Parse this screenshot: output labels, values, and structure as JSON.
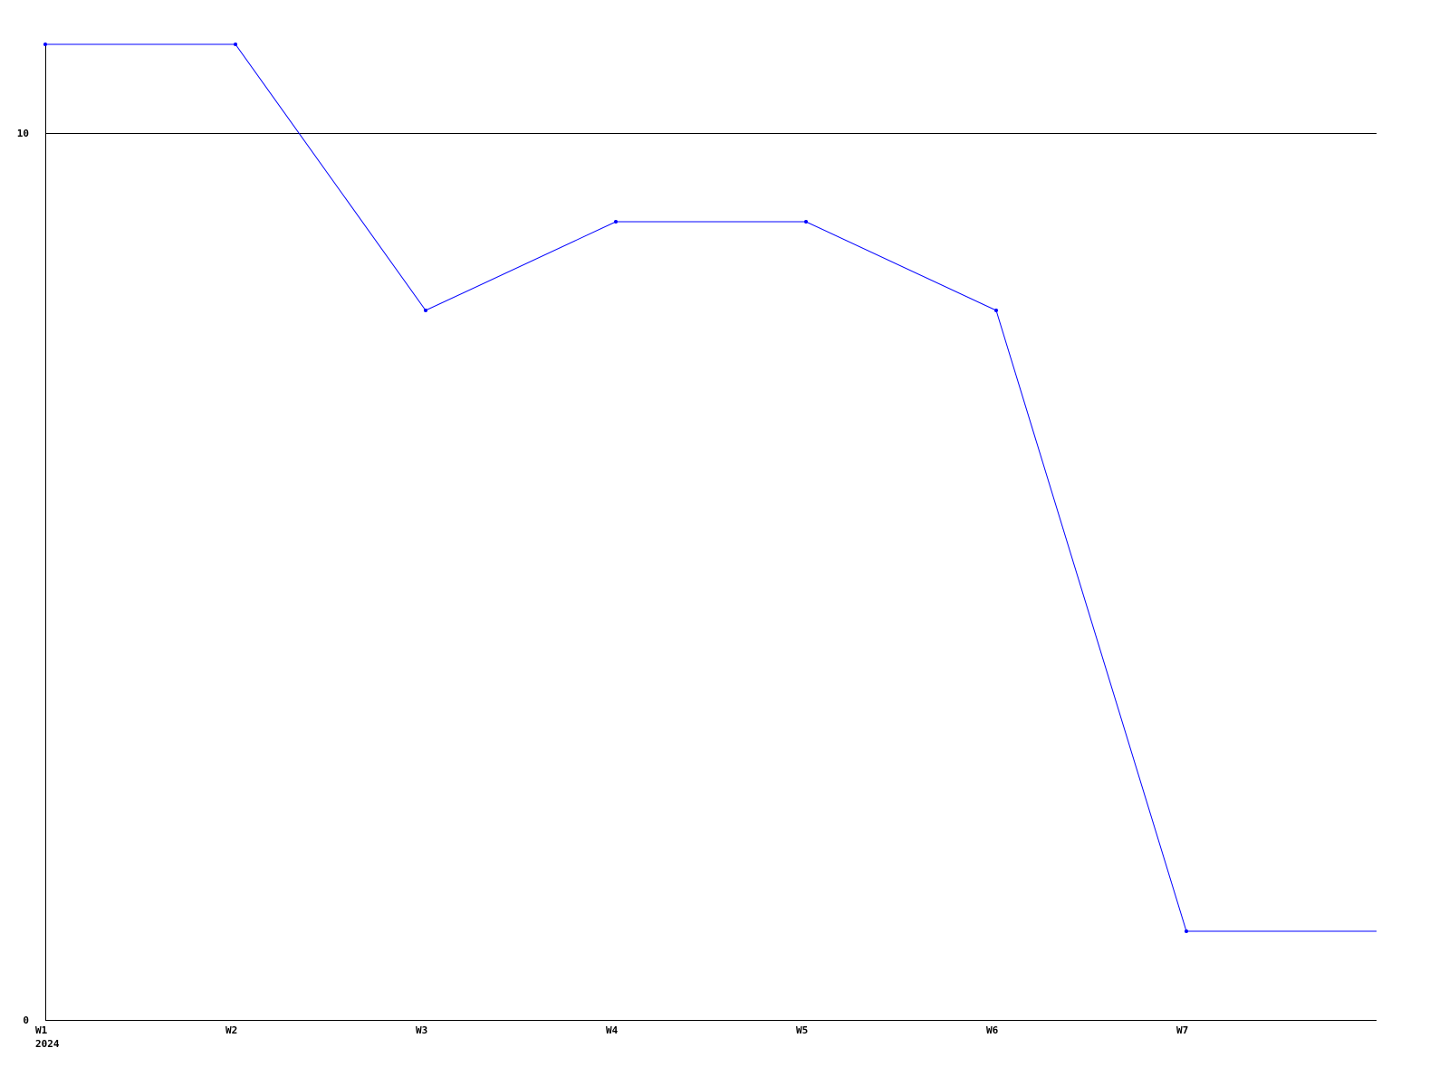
{
  "chart_data": {
    "type": "line",
    "title": "",
    "xlabel": "",
    "ylabel": "",
    "categories": [
      "W1",
      "W2",
      "W3",
      "W4",
      "W5",
      "W6",
      "W7"
    ],
    "x_sublabel": "2024",
    "series": [
      {
        "values": [
          11,
          11,
          8,
          9,
          9,
          8,
          1
        ],
        "color": "#0000ff"
      }
    ],
    "last_value_extends_to_right_edge": true,
    "ylim": [
      0,
      11
    ],
    "yticks": [
      0,
      10
    ],
    "ytick_labels": [
      "0",
      "10"
    ],
    "grid": "horizontal line at 10",
    "legend": "none",
    "axis_color": "#000000"
  }
}
